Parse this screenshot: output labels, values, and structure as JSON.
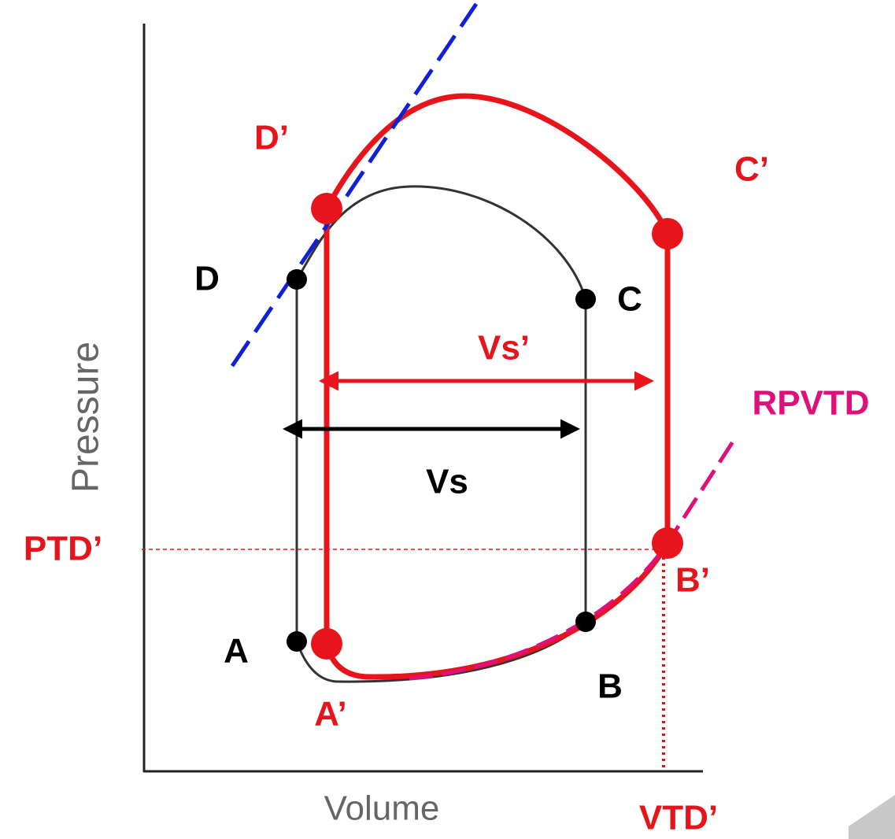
{
  "axes": {
    "y_label": "Pressure",
    "x_label": "Volume"
  },
  "points": {
    "A": "A",
    "B": "B",
    "C": "C",
    "D": "D",
    "A_prime": "A’",
    "B_prime": "B’",
    "C_prime": "C’",
    "D_prime": "D’"
  },
  "arrows": {
    "vs": "Vs",
    "vs_prime": "Vs’"
  },
  "lines": {
    "rpvtd": "RPVTD",
    "ptd": "PTD’",
    "vtd": "VTD’"
  }
}
